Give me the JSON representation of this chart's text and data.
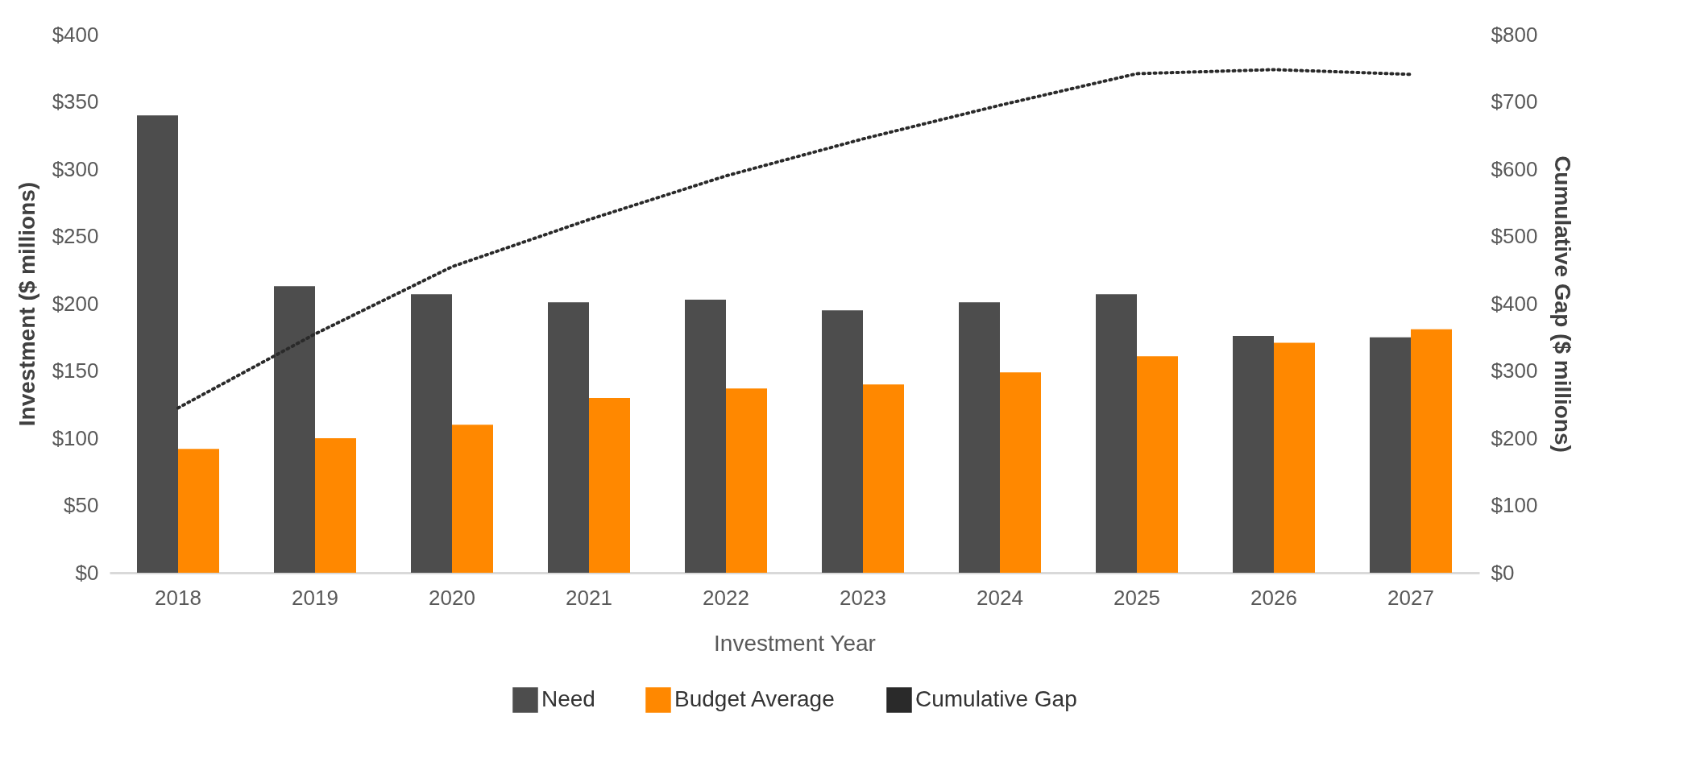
{
  "chart_data": {
    "type": "bar",
    "xlabel": "Investment Year",
    "ylabel": "Investment ($ millions)",
    "y2label": "Cumulative Gap ($ millions)",
    "categories": [
      "2018",
      "2019",
      "2020",
      "2021",
      "2022",
      "2023",
      "2024",
      "2025",
      "2026",
      "2027"
    ],
    "series": [
      {
        "name": "Need",
        "color": "#4d4d4d",
        "values": [
          340,
          213,
          207,
          201,
          203,
          195,
          201,
          207,
          176,
          175
        ]
      },
      {
        "name": "Budget Average",
        "color": "#ff8800",
        "values": [
          92,
          100,
          110,
          130,
          137,
          140,
          149,
          161,
          171,
          181
        ]
      },
      {
        "name": "Cumulative Gap",
        "type": "line",
        "axis": "y2",
        "line_style": "dotted",
        "color": "#2a2a2a",
        "values": [
          245,
          355,
          455,
          525,
          590,
          645,
          695,
          742,
          748,
          741
        ]
      }
    ],
    "ylim": [
      0,
      400
    ],
    "yticks": [
      {
        "value": 0,
        "label": "$0"
      },
      {
        "value": 50,
        "label": "$50"
      },
      {
        "value": 100,
        "label": "$100"
      },
      {
        "value": 150,
        "label": "$150"
      },
      {
        "value": 200,
        "label": "$200"
      },
      {
        "value": 250,
        "label": "$250"
      },
      {
        "value": 300,
        "label": "$300"
      },
      {
        "value": 350,
        "label": "$350"
      },
      {
        "value": 400,
        "label": "$400"
      }
    ],
    "y2lim": [
      0,
      800
    ],
    "y2ticks": [
      {
        "value": 0,
        "label": "$0"
      },
      {
        "value": 100,
        "label": "$100"
      },
      {
        "value": 200,
        "label": "$200"
      },
      {
        "value": 300,
        "label": "$300"
      },
      {
        "value": 400,
        "label": "$400"
      },
      {
        "value": 500,
        "label": "$500"
      },
      {
        "value": 600,
        "label": "$600"
      },
      {
        "value": 700,
        "label": "$700"
      },
      {
        "value": 800,
        "label": "$800"
      }
    ],
    "grid": false,
    "legend": "bottom"
  }
}
